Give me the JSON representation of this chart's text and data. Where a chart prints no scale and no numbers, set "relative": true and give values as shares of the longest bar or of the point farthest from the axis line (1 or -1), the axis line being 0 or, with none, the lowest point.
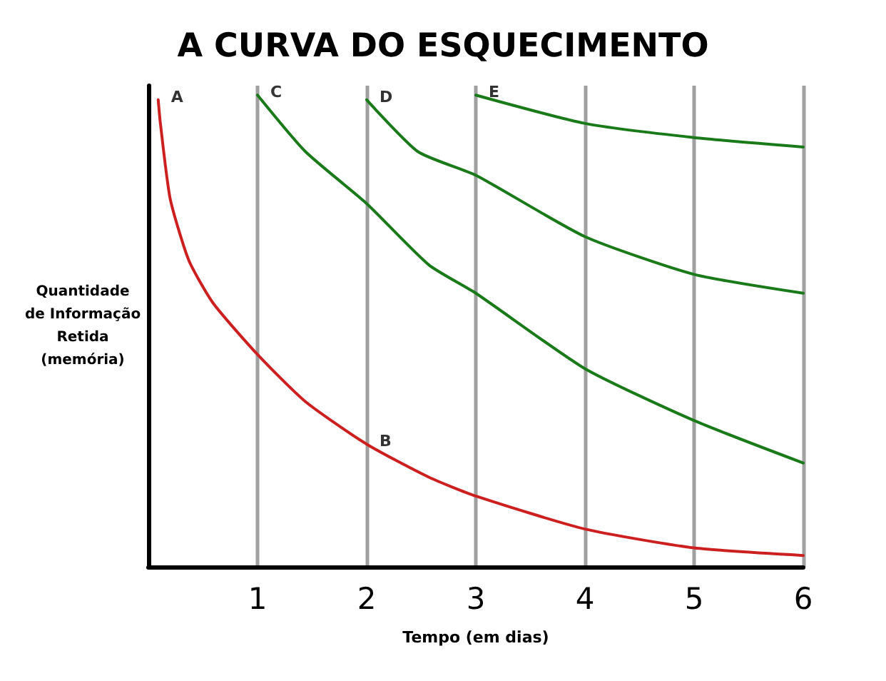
{
  "chart_data": {
    "type": "line",
    "title": "A CURVA DO ESQUECIMENTO",
    "xlabel": "Tempo (em dias)",
    "ylabel": "Quantidade\nde Informação\nRetida\n(memória)",
    "relative": true,
    "xlim": [
      0,
      6
    ],
    "xticks": [
      1,
      2,
      3,
      4,
      5,
      6
    ],
    "grid": "x",
    "marker": "none",
    "line_style": "solid",
    "series": [
      {
        "color": "#cc2020",
        "x": [
          0.09,
          0.11,
          0.2,
          0.37,
          0.59,
          1,
          1.44,
          2,
          2.57,
          3,
          4,
          5,
          6
        ],
        "values": [
          0.99,
          0.94,
          0.78,
          0.65,
          0.56,
          0.45,
          0.35,
          0.26,
          0.19,
          0.15,
          0.08,
          0.04,
          0.024
        ]
      },
      {
        "color": "#1a7a1a",
        "x": [
          1,
          1.44,
          2,
          2.57,
          3,
          4,
          5,
          6
        ],
        "values": [
          1.0,
          0.88,
          0.77,
          0.64,
          0.58,
          0.42,
          0.31,
          0.22
        ]
      },
      {
        "color": "#1a7a1a",
        "x": [
          2,
          2.47,
          3,
          4,
          5,
          6
        ],
        "values": [
          0.99,
          0.88,
          0.83,
          0.7,
          0.62,
          0.58
        ]
      },
      {
        "color": "#1a7a1a",
        "x": [
          3,
          4,
          5,
          6
        ],
        "values": [
          1.0,
          0.94,
          0.91,
          0.89
        ]
      }
    ],
    "annotations": [
      {
        "text": "A",
        "x": 0.09,
        "y": 0.99
      },
      {
        "text": "B",
        "x": 2,
        "y": 0.26
      },
      {
        "text": "C",
        "x": 1,
        "y": 1.0
      },
      {
        "text": "D",
        "x": 2,
        "y": 0.99
      },
      {
        "text": "E",
        "x": 3,
        "y": 1.0
      }
    ]
  }
}
